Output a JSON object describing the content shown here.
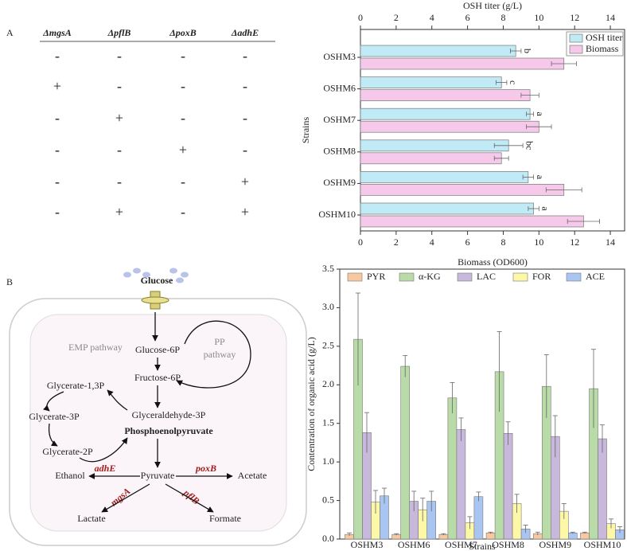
{
  "panel_labels": [
    "A",
    "B"
  ],
  "table": {
    "headers": [
      "ΔmgsA",
      "ΔpflB",
      "ΔpoxB",
      "ΔadhE"
    ],
    "rows": [
      [
        "-",
        "-",
        "-",
        "-"
      ],
      [
        "+",
        "-",
        "-",
        "-"
      ],
      [
        "-",
        "+",
        "-",
        "-"
      ],
      [
        "-",
        "-",
        "+",
        "-"
      ],
      [
        "-",
        "-",
        "-",
        "+"
      ],
      [
        "-",
        "+",
        "-",
        "+"
      ]
    ]
  },
  "chart_data": [
    {
      "type": "hbar",
      "x2_label": "OSH titer (g/L)",
      "x_label": "Biomass (OD600)",
      "y_label": "Strains",
      "categories": [
        "OSHM3",
        "OSHM6",
        "OSHM7",
        "OSHM8",
        "OSHM9",
        "OSHM10"
      ],
      "xlim": [
        0,
        14.8
      ],
      "xticks": [
        0,
        2,
        4,
        6,
        8,
        10,
        12,
        14
      ],
      "x2lim": [
        0,
        14.8
      ],
      "x2ticks": [
        0,
        2,
        4,
        6,
        8,
        10,
        12,
        14
      ],
      "legend": "upper right",
      "series": [
        {
          "name": "OSH titer",
          "color": "#bfeaf6",
          "axis": "x2",
          "values": [
            8.7,
            7.9,
            9.5,
            8.3,
            9.4,
            9.7
          ],
          "errors": [
            0.3,
            0.3,
            0.2,
            0.8,
            0.3,
            0.3
          ],
          "labels": [
            "b",
            "c",
            "a",
            "bc",
            "a",
            "a"
          ]
        },
        {
          "name": "Biomass",
          "color": "#f6c9ea",
          "values": [
            11.4,
            9.5,
            10.0,
            7.9,
            11.4,
            12.5
          ],
          "errors": [
            0.7,
            0.5,
            0.7,
            0.4,
            1.0,
            0.9
          ]
        }
      ]
    },
    {
      "type": "bar",
      "y_label": "Contentration of organic acid (g/L)",
      "x_label": "Strains",
      "categories": [
        "OSHM3",
        "OSHM6",
        "OSHM7",
        "OSHM8",
        "OSHM9",
        "OSHM10"
      ],
      "ylim": [
        0,
        3.5
      ],
      "yticks": [
        {
          "value": 0,
          "label": "0.0"
        },
        0.5,
        {
          "value": 1,
          "label": "1.0"
        },
        1.5,
        {
          "value": 2,
          "label": "2.0"
        },
        2.5,
        {
          "value": 3,
          "label": "3.0"
        },
        3.5
      ],
      "legend": "upper center",
      "series": [
        {
          "name": "PYR",
          "color": "#f8c9a0",
          "values": [
            0.06,
            0.06,
            0.06,
            0.08,
            0.07,
            0.08
          ],
          "errors": [
            0.02,
            0.01,
            0.01,
            0.01,
            0.02,
            0.01
          ]
        },
        {
          "name": "α-KG",
          "color": "#b8dba8",
          "values": [
            2.59,
            2.24,
            1.83,
            2.17,
            1.98,
            1.95
          ],
          "errors": [
            0.6,
            0.14,
            0.2,
            0.52,
            0.41,
            0.51
          ]
        },
        {
          "name": "LAC",
          "color": "#c7b8dc",
          "values": [
            1.38,
            0.49,
            1.42,
            1.37,
            1.33,
            1.3
          ],
          "errors": [
            0.26,
            0.13,
            0.15,
            0.15,
            0.27,
            0.18
          ]
        },
        {
          "name": "FOR",
          "color": "#fdf8a8",
          "values": [
            0.48,
            0.38,
            0.21,
            0.46,
            0.36,
            0.2
          ],
          "errors": [
            0.15,
            0.15,
            0.08,
            0.12,
            0.1,
            0.06
          ]
        },
        {
          "name": "ACE",
          "color": "#a9c6f2",
          "values": [
            0.56,
            0.49,
            0.55,
            0.13,
            0.08,
            0.12
          ],
          "errors": [
            0.1,
            0.13,
            0.06,
            0.05,
            0.01,
            0.04
          ]
        }
      ]
    }
  ],
  "diagram": {
    "glucose": "Glucose",
    "emp": "EMP pathway",
    "pp": [
      "PP",
      "pathway"
    ],
    "metabolites": [
      "Glucose-6P",
      "Fructose-6P",
      "Glycerate-1,3P",
      "Glycerate-3P",
      "Glycerate-2P",
      "Glyceraldehyde-3P",
      "Phosphoenolpyruvate",
      "Pyruvate",
      "Ethanol",
      "Acetate",
      "Lactate",
      "Formate"
    ],
    "enzymes": [
      "adhE",
      "poxB",
      "mgsA",
      "pflB"
    ]
  }
}
